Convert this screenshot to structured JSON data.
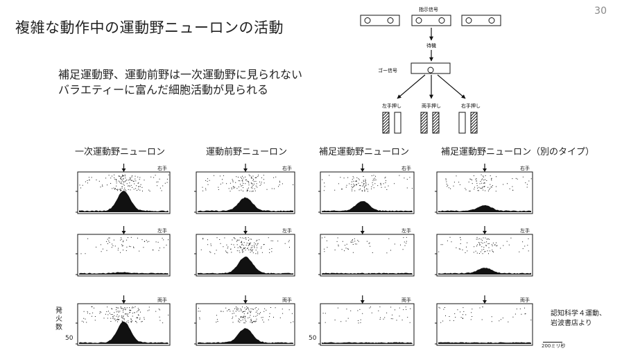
{
  "slide": {
    "page_number": "30",
    "title": "複雑な動作中の運動野ニューロンの活動",
    "subtitle_lines": [
      "補足運動野、運動前野は一次運動野に見られない",
      "バラエティーに富んだ細胞活動が見られる"
    ]
  },
  "task_diagram": {
    "instruction_label": "指示信号",
    "wait_label": "待機",
    "go_label": "ゴー信号",
    "response_labels": [
      "左手押し",
      "両手押し",
      "右手押し"
    ]
  },
  "columns": [
    {
      "id": "m1",
      "label": "一次運動野ニューロン"
    },
    {
      "id": "pm",
      "label": "運動前野ニューロン"
    },
    {
      "id": "sma",
      "label": "補足運動野ニューロン"
    },
    {
      "id": "sma2",
      "label": "補足運動野ニューロン（別のタイプ）"
    }
  ],
  "conditions": [
    "右手",
    "左手",
    "両手"
  ],
  "y_axis": {
    "label": "発火数",
    "tick": "50"
  },
  "scale_bar": "200ミリ秒",
  "citation_lines": [
    "認知科学４運動、",
    "岩波書店より"
  ],
  "chart_data": {
    "type": "raster_histogram",
    "x_unit": "time (go signal at arrow)",
    "panels_activity": [
      [
        0.9,
        0.05,
        0.95
      ],
      [
        0.6,
        0.75,
        0.65
      ],
      [
        0.45,
        0.0,
        0.0
      ],
      [
        0.25,
        0.25,
        0.0
      ]
    ]
  }
}
